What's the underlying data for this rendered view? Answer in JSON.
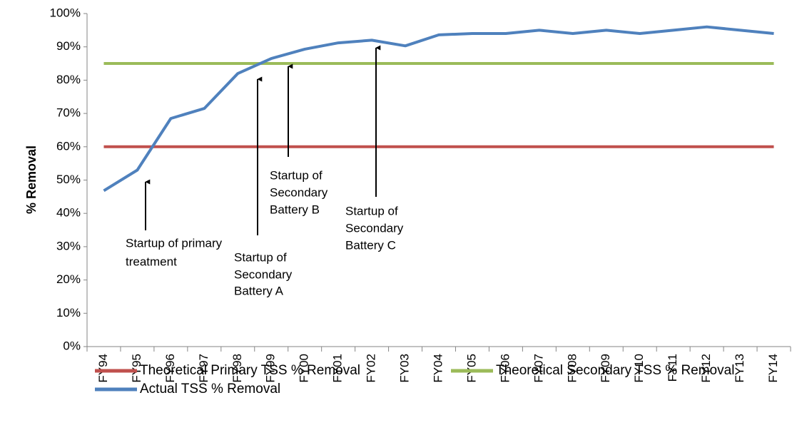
{
  "chart_data": {
    "type": "line",
    "y_label": "% Removal",
    "categories": [
      "FY94",
      "FY95",
      "FY96",
      "FY97",
      "FY98",
      "FY99",
      "FY00",
      "FY01",
      "FY02",
      "FY03",
      "FY04",
      "FY05",
      "FY06",
      "FY07",
      "FY08",
      "FY09",
      "FY10",
      "FY11",
      "FY12",
      "FY13",
      "FY14"
    ],
    "series": [
      {
        "name": "Theoretical Primary TSS % Removal",
        "color": "#c0504d",
        "values": [
          60,
          60,
          60,
          60,
          60,
          60,
          60,
          60,
          60,
          60,
          60,
          60,
          60,
          60,
          60,
          60,
          60,
          60,
          60,
          60,
          60
        ]
      },
      {
        "name": "Theoretical Secondary TSS % Removal",
        "color": "#9bbb59",
        "values": [
          85,
          85,
          85,
          85,
          85,
          85,
          85,
          85,
          85,
          85,
          85,
          85,
          85,
          85,
          85,
          85,
          85,
          85,
          85,
          85,
          85
        ]
      },
      {
        "name": "Actual TSS % Removal",
        "color": "#4f81bd",
        "values": [
          46.8,
          53,
          68.5,
          71.5,
          82,
          86.5,
          89.3,
          91.2,
          92,
          90.3,
          93.6,
          94,
          94,
          95,
          94,
          95,
          94,
          95,
          96,
          95,
          94
        ]
      }
    ],
    "ylim": [
      0,
      100
    ],
    "yticks": [
      {
        "value": 0,
        "label": "0%"
      },
      {
        "value": 10,
        "label": "10%"
      },
      {
        "value": 20,
        "label": "20%"
      },
      {
        "value": 30,
        "label": "30%"
      },
      {
        "value": 40,
        "label": "40%"
      },
      {
        "value": 50,
        "label": "50%"
      },
      {
        "value": 60,
        "label": "60%"
      },
      {
        "value": 70,
        "label": "70%"
      },
      {
        "value": 80,
        "label": "80%"
      },
      {
        "value": 90,
        "label": "90%"
      },
      {
        "value": 100,
        "label": "100%"
      }
    ],
    "legend": "bottom",
    "annotations": [
      {
        "lines": [
          "Startup of primary",
          "treatment"
        ]
      },
      {
        "lines": [
          "Startup of",
          "Secondary",
          "Battery A"
        ]
      },
      {
        "lines": [
          "Startup of",
          "Secondary",
          "Battery B"
        ]
      },
      {
        "lines": [
          "Startup of",
          "Secondary",
          "Battery C"
        ]
      }
    ]
  }
}
